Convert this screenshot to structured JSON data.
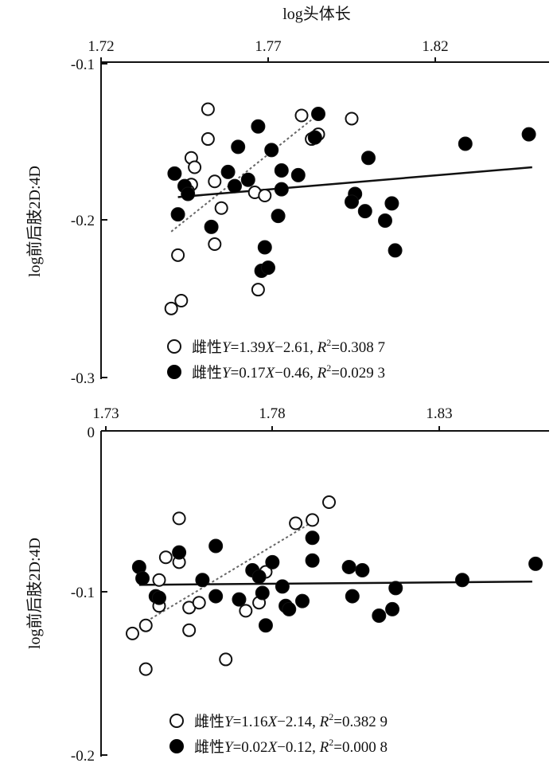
{
  "chart_data": [
    {
      "type": "scatter",
      "title": "",
      "xlabel": "log头体长",
      "ylabel": "log前后肢2D:4D",
      "xlim": [
        1.72,
        1.85
      ],
      "ylim": [
        -0.3,
        -0.1
      ],
      "xticks": [
        "1.72",
        "1.77",
        "1.82"
      ],
      "yticks": [
        "-0.1",
        "-0.2",
        "-0.3"
      ],
      "grid": false,
      "legend_position": "bottom-center",
      "series": [
        {
          "name": "雌性",
          "marker": "open-circle",
          "equation": "Y=1.39X−2.61, R²=0.308 7",
          "eq_y": "Y",
          "eq_main": "=1.39",
          "eq_x": "X",
          "eq_tail": "−2.61, ",
          "eq_r": "R",
          "eq_sup": "2",
          "eq_val": "=0.308 7",
          "trend": [
            [
              1.741,
              -0.207
            ],
            [
              1.784,
              -0.134
            ]
          ],
          "points": [
            [
              1.747,
              -0.16
            ],
            [
              1.748,
              -0.166
            ],
            [
              1.747,
              -0.177
            ],
            [
              1.746,
              -0.181
            ],
            [
              1.752,
              -0.129
            ],
            [
              1.752,
              -0.148
            ],
            [
              1.754,
              -0.175
            ],
            [
              1.756,
              -0.192
            ],
            [
              1.754,
              -0.215
            ],
            [
              1.743,
              -0.222
            ],
            [
              1.741,
              -0.256
            ],
            [
              1.744,
              -0.251
            ],
            [
              1.766,
              -0.182
            ],
            [
              1.769,
              -0.184
            ],
            [
              1.767,
              -0.244
            ],
            [
              1.78,
              -0.133
            ],
            [
              1.785,
              -0.145
            ],
            [
              1.783,
              -0.148
            ],
            [
              1.795,
              -0.135
            ]
          ]
        },
        {
          "name": "雌性",
          "marker": "filled-circle",
          "equation": "Y=0.17X−0.46, R²=0.029 3",
          "eq_y": "Y",
          "eq_main": "=0.17",
          "eq_x": "X",
          "eq_tail": "−0.46, ",
          "eq_r": "R",
          "eq_sup": "2",
          "eq_val": "=0.029 3",
          "trend": [
            [
              1.743,
              -0.185
            ],
            [
              1.849,
              -0.166
            ]
          ],
          "points": [
            [
              1.742,
              -0.17
            ],
            [
              1.745,
              -0.178
            ],
            [
              1.746,
              -0.183
            ],
            [
              1.743,
              -0.196
            ],
            [
              1.753,
              -0.204
            ],
            [
              1.758,
              -0.169
            ],
            [
              1.761,
              -0.153
            ],
            [
              1.76,
              -0.178
            ],
            [
              1.764,
              -0.174
            ],
            [
              1.767,
              -0.14
            ],
            [
              1.771,
              -0.155
            ],
            [
              1.774,
              -0.168
            ],
            [
              1.774,
              -0.18
            ],
            [
              1.773,
              -0.197
            ],
            [
              1.769,
              -0.217
            ],
            [
              1.768,
              -0.232
            ],
            [
              1.77,
              -0.23
            ],
            [
              1.779,
              -0.171
            ],
            [
              1.785,
              -0.132
            ],
            [
              1.784,
              -0.147
            ],
            [
              1.796,
              -0.183
            ],
            [
              1.795,
              -0.188
            ],
            [
              1.8,
              -0.16
            ],
            [
              1.799,
              -0.194
            ],
            [
              1.805,
              -0.2
            ],
            [
              1.807,
              -0.189
            ],
            [
              1.808,
              -0.219
            ],
            [
              1.829,
              -0.151
            ],
            [
              1.848,
              -0.145
            ]
          ]
        }
      ]
    },
    {
      "type": "scatter",
      "title": "",
      "xlabel": "",
      "ylabel": "log前后肢2D:4D",
      "xlim": [
        1.73,
        1.86
      ],
      "ylim": [
        -0.2,
        0
      ],
      "xticks": [
        "1.73",
        "1.78",
        "1.83"
      ],
      "yticks": [
        "0",
        "-0.1",
        "-0.2"
      ],
      "grid": false,
      "legend_position": "bottom-center",
      "series": [
        {
          "name": "雌性",
          "marker": "open-circle",
          "equation": "Y=1.16X−2.14, R²=0.382 9",
          "eq_y": "Y",
          "eq_main": "=1.16",
          "eq_x": "X",
          "eq_tail": "−2.14, ",
          "eq_r": "R",
          "eq_sup": "2",
          "eq_val": "=0.382 9",
          "trend": [
            [
              1.741,
              -0.119
            ],
            [
              1.793,
              -0.055
            ]
          ],
          "points": [
            [
              1.738,
              -0.125
            ],
            [
              1.742,
              -0.12
            ],
            [
              1.742,
              -0.147
            ],
            [
              1.746,
              -0.108
            ],
            [
              1.746,
              -0.092
            ],
            [
              1.748,
              -0.078
            ],
            [
              1.752,
              -0.054
            ],
            [
              1.752,
              -0.081
            ],
            [
              1.755,
              -0.109
            ],
            [
              1.755,
              -0.123
            ],
            [
              1.758,
              -0.106
            ],
            [
              1.766,
              -0.141
            ],
            [
              1.772,
              -0.111
            ],
            [
              1.776,
              -0.106
            ],
            [
              1.778,
              -0.087
            ],
            [
              1.787,
              -0.057
            ],
            [
              1.792,
              -0.055
            ],
            [
              1.797,
              -0.044
            ]
          ]
        },
        {
          "name": "雌性",
          "marker": "filled-circle",
          "equation": "Y=0.02X−0.12, R²=0.000 8",
          "eq_y": "Y",
          "eq_main": "=0.02",
          "eq_x": "X",
          "eq_tail": "−0.12, ",
          "eq_r": "R",
          "eq_sup": "2",
          "eq_val": "=0.000 8",
          "trend": [
            [
              1.74,
              -0.095
            ],
            [
              1.858,
              -0.093
            ]
          ],
          "points": [
            [
              1.74,
              -0.084
            ],
            [
              1.741,
              -0.091
            ],
            [
              1.745,
              -0.102
            ],
            [
              1.746,
              -0.103
            ],
            [
              1.752,
              -0.075
            ],
            [
              1.759,
              -0.092
            ],
            [
              1.763,
              -0.071
            ],
            [
              1.763,
              -0.102
            ],
            [
              1.77,
              -0.104
            ],
            [
              1.774,
              -0.086
            ],
            [
              1.776,
              -0.09
            ],
            [
              1.777,
              -0.1
            ],
            [
              1.778,
              -0.12
            ],
            [
              1.78,
              -0.081
            ],
            [
              1.783,
              -0.096
            ],
            [
              1.784,
              -0.108
            ],
            [
              1.785,
              -0.11
            ],
            [
              1.789,
              -0.105
            ],
            [
              1.792,
              -0.08
            ],
            [
              1.792,
              -0.066
            ],
            [
              1.803,
              -0.084
            ],
            [
              1.804,
              -0.102
            ],
            [
              1.807,
              -0.086
            ],
            [
              1.812,
              -0.114
            ],
            [
              1.816,
              -0.11
            ],
            [
              1.817,
              -0.097
            ],
            [
              1.837,
              -0.092
            ],
            [
              1.859,
              -0.082
            ]
          ]
        }
      ]
    }
  ]
}
